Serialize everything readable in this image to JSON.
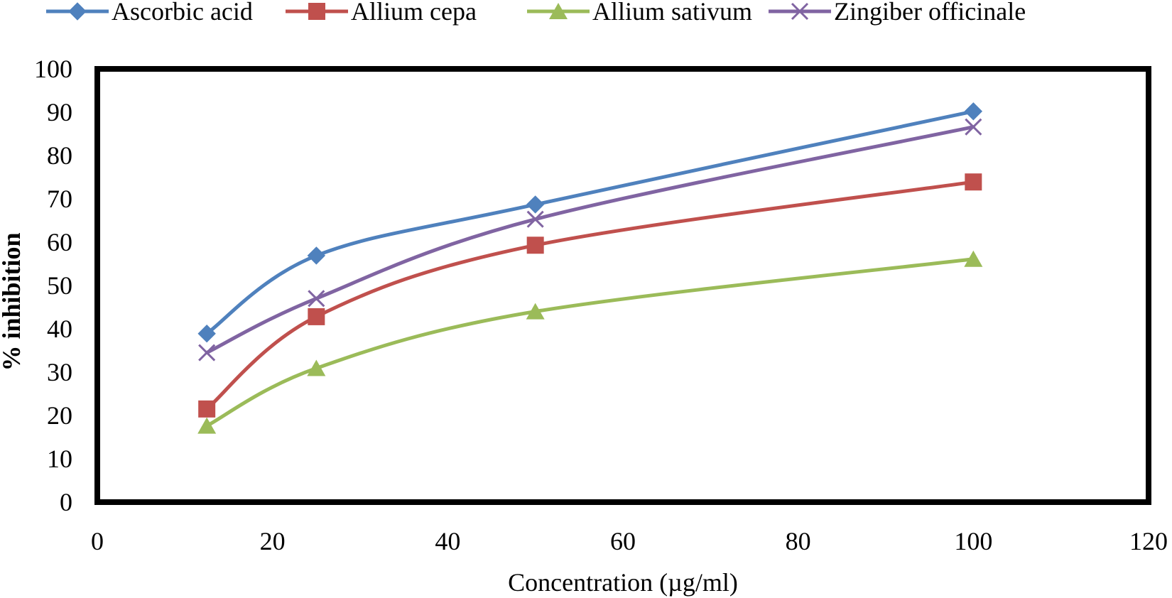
{
  "chart_data": {
    "type": "line",
    "title": "",
    "xlabel": "Concentration (µg/ml)",
    "ylabel": "% inhibition",
    "xlim": [
      0,
      120
    ],
    "ylim": [
      0,
      100
    ],
    "xticks": [
      0,
      20,
      40,
      60,
      80,
      100,
      120
    ],
    "yticks": [
      0,
      10,
      20,
      30,
      40,
      50,
      60,
      70,
      80,
      90,
      100
    ],
    "grid": false,
    "legend_position": "top",
    "x": [
      12.5,
      25,
      50,
      100
    ],
    "series": [
      {
        "name": "Ascorbic acid",
        "marker": "diamond",
        "color": "#4F81BD",
        "values": [
          38.9,
          56.9,
          68.7,
          90.2
        ]
      },
      {
        "name": "Allium cepa",
        "marker": "square",
        "color": "#C0504D",
        "values": [
          21.5,
          42.8,
          59.3,
          73.9
        ]
      },
      {
        "name": "Allium sativum",
        "marker": "triangle",
        "color": "#9BBB59",
        "values": [
          17.6,
          30.9,
          44.0,
          56.1
        ]
      },
      {
        "name": "Zingiber officinale",
        "marker": "x",
        "color": "#8064A2",
        "values": [
          34.5,
          47.0,
          65.3,
          86.6
        ]
      }
    ]
  }
}
